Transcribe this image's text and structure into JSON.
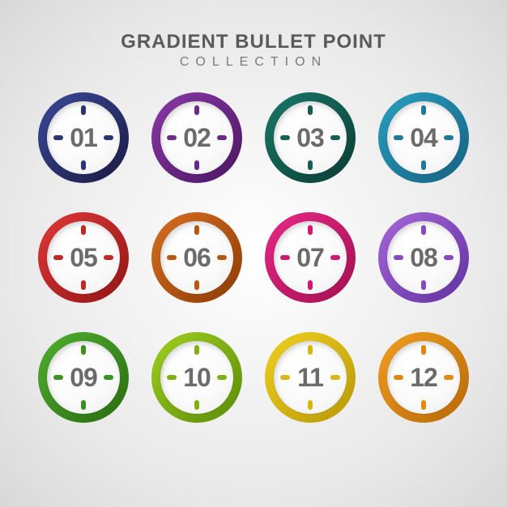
{
  "header": {
    "title": "GRADIENT BULLET POINT",
    "subtitle": "COLLECTION",
    "title_color": "#5a5a5a",
    "subtitle_color": "#7a7a7a",
    "title_fontsize": 24,
    "subtitle_fontsize": 16,
    "subtitle_letterspacing": 8
  },
  "layout": {
    "type": "infographic",
    "grid_cols": 4,
    "grid_rows": 3,
    "bullet_diameter": 112,
    "ring_thickness": 11,
    "inner_bg": "#ffffff",
    "number_color": "#6b6b6b",
    "number_fontsize": 32,
    "tick_size": {
      "w": 12,
      "h": 6
    },
    "background": "radial-gradient(#ffffff,#d8d8d8)"
  },
  "bullets": [
    {
      "label": "01",
      "grad_start": "#3a4a9a",
      "grad_end": "#1a1a40",
      "tick_color": "#2b3570"
    },
    {
      "label": "02",
      "grad_start": "#8a3aa8",
      "grad_end": "#4a1560",
      "tick_color": "#6a2a88"
    },
    {
      "label": "03",
      "grad_start": "#1a7a6a",
      "grad_end": "#0a3a32",
      "tick_color": "#156052"
    },
    {
      "label": "04",
      "grad_start": "#2aa0c0",
      "grad_end": "#156080",
      "tick_color": "#1f7a9a"
    },
    {
      "label": "05",
      "grad_start": "#e03838",
      "grad_end": "#901515",
      "tick_color": "#c02828"
    },
    {
      "label": "06",
      "grad_start": "#d87020",
      "grad_end": "#8a3a08",
      "tick_color": "#b85810"
    },
    {
      "label": "07",
      "grad_start": "#e82888",
      "grad_end": "#a01050",
      "tick_color": "#d01870"
    },
    {
      "label": "08",
      "grad_start": "#a868d8",
      "grad_end": "#6030a0",
      "tick_color": "#8a48c0"
    },
    {
      "label": "09",
      "grad_start": "#50b030",
      "grad_end": "#2a6a10",
      "tick_color": "#3a9020"
    },
    {
      "label": "10",
      "grad_start": "#a0d020",
      "grad_end": "#5a8a08",
      "tick_color": "#80b010"
    },
    {
      "label": "11",
      "grad_start": "#f0d020",
      "grad_end": "#b89808",
      "tick_color": "#d8b810"
    },
    {
      "label": "12",
      "grad_start": "#f0a020",
      "grad_end": "#b86808",
      "tick_color": "#e08810"
    }
  ]
}
